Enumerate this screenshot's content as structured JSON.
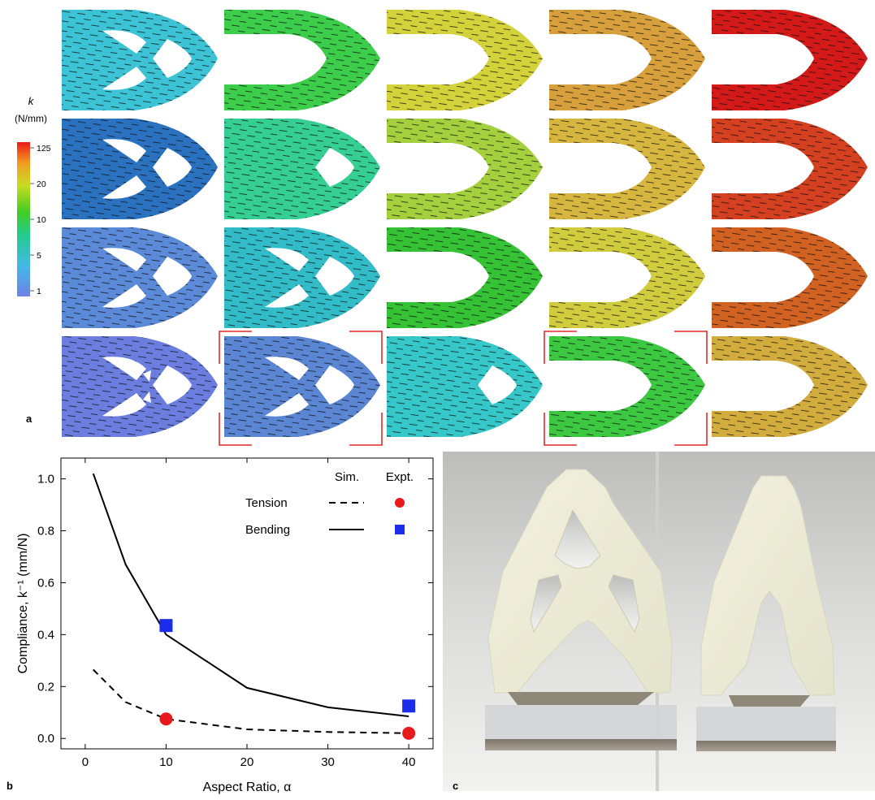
{
  "panel_a": {
    "label": "a",
    "colorbar": {
      "symbol": "k",
      "unit": "(N/mm)",
      "ticks": [
        "125",
        "20",
        "10",
        "5",
        "1"
      ]
    },
    "grid_colors": [
      [
        "#3cc4d6",
        "#3ccd4a",
        "#d4d23a",
        "#d7a03c",
        "#d41a18"
      ],
      [
        "#2a72c0",
        "#35cf94",
        "#a4d03d",
        "#d7b63f",
        "#d44020"
      ],
      [
        "#5b8ad8",
        "#32bcc8",
        "#35c234",
        "#d0cc3e",
        "#d16222"
      ],
      [
        "#6b7ee0",
        "#5a86d4",
        "#36c8c8",
        "#3cc840",
        "#d3ac3e"
      ]
    ],
    "grid_holes": [
      [
        2,
        0,
        0,
        0,
        0
      ],
      [
        2,
        1,
        0,
        0,
        0
      ],
      [
        3,
        3,
        0,
        0,
        0
      ],
      [
        4,
        3,
        1,
        0,
        0
      ]
    ],
    "highlighted_cells": [
      "row4-col2",
      "row4-col4"
    ]
  },
  "panel_b": {
    "label": "b",
    "chart_data": {
      "type": "line",
      "xlabel": "Aspect Ratio, α",
      "ylabel": "Compliance, k⁻¹ (mm/N)",
      "xlim": [
        -3,
        43
      ],
      "ylim": [
        -0.04,
        1.08
      ],
      "xticks": [
        0,
        10,
        20,
        30,
        40
      ],
      "yticks": [
        0.0,
        0.2,
        0.4,
        0.6,
        0.8,
        1.0
      ],
      "grid": false,
      "legend": {
        "placement": "top-right",
        "sim_header": "Sim.",
        "expt_header": "Expt.",
        "rows": [
          "Tension",
          "Bending"
        ]
      },
      "series": [
        {
          "name": "Tension",
          "kind": "sim",
          "style": "dashed",
          "x": [
            1,
            5,
            10,
            20,
            30,
            40
          ],
          "y": [
            0.265,
            0.14,
            0.075,
            0.035,
            0.025,
            0.02
          ]
        },
        {
          "name": "Bending",
          "kind": "sim",
          "style": "solid",
          "x": [
            1,
            5,
            10,
            20,
            30,
            40
          ],
          "y": [
            1.02,
            0.67,
            0.4,
            0.195,
            0.12,
            0.085
          ]
        },
        {
          "name": "Tension",
          "kind": "expt",
          "marker": "circle",
          "color": "#e8191b",
          "x": [
            10,
            40
          ],
          "y": [
            0.075,
            0.02
          ]
        },
        {
          "name": "Bending",
          "kind": "expt",
          "marker": "square",
          "color": "#1b2de8",
          "x": [
            10,
            40
          ],
          "y": [
            0.435,
            0.125
          ]
        }
      ]
    }
  },
  "panel_c": {
    "label": "c"
  }
}
